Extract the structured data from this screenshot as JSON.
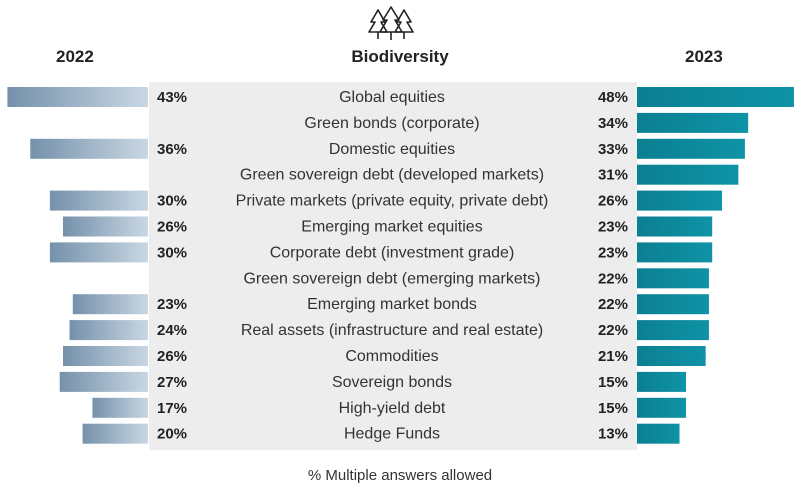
{
  "chart_data": {
    "type": "bar",
    "title": "Biodiversity",
    "icon": "trees-icon",
    "footnote": "% Multiple answers allowed",
    "colors": {
      "left_bar": "#8aa4ba",
      "right_bar": "#0f93a6",
      "panel": "#ededed"
    },
    "categories": [
      "Global equities",
      "Green bonds (corporate)",
      "Domestic equities",
      "Green sovereign debt (developed markets)",
      "Private markets (private equity, private debt)",
      "Emerging market equities",
      "Corporate debt (investment grade)",
      "Green sovereign debt (emerging markets)",
      "Emerging market bonds",
      "Real assets (infrastructure and real estate)",
      "Commodities",
      "Sovereign bonds",
      "High-yield debt",
      "Hedge Funds"
    ],
    "series": [
      {
        "name": "2022",
        "values": [
          43,
          null,
          36,
          null,
          30,
          26,
          30,
          null,
          23,
          24,
          26,
          27,
          17,
          20
        ]
      },
      {
        "name": "2023",
        "values": [
          48,
          34,
          33,
          31,
          26,
          23,
          23,
          22,
          22,
          22,
          21,
          15,
          15,
          13
        ]
      }
    ],
    "value_suffix": "%"
  }
}
